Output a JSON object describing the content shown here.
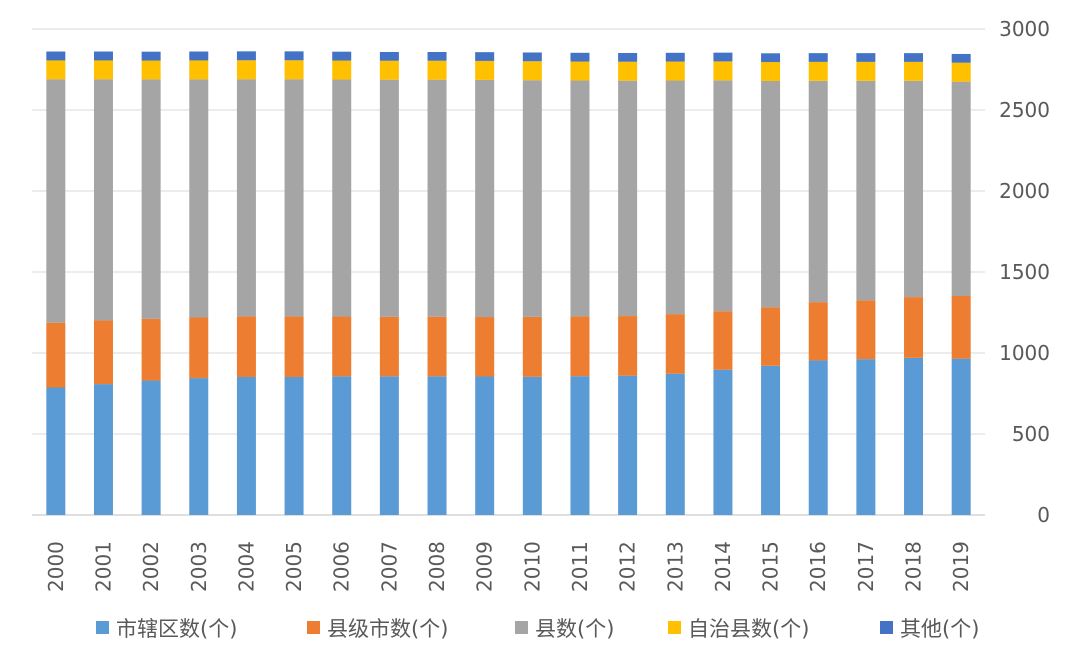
{
  "chart_data": {
    "type": "bar",
    "stacked": true,
    "title": "",
    "xlabel": "",
    "ylabel": "",
    "ylim": [
      0,
      3000
    ],
    "yticks": [
      0,
      500,
      1000,
      1500,
      2000,
      2500,
      3000
    ],
    "y_axis_side": "right",
    "grid": true,
    "legend_position": "bottom",
    "categories": [
      "2000",
      "2001",
      "2002",
      "2003",
      "2004",
      "2005",
      "2006",
      "2007",
      "2008",
      "2009",
      "2010",
      "2011",
      "2012",
      "2013",
      "2014",
      "2015",
      "2016",
      "2017",
      "2018",
      "2019"
    ],
    "series": [
      {
        "name": "市辖区数(个)",
        "color": "#5B9BD5",
        "values": [
          787,
          808,
          830,
          845,
          852,
          852,
          856,
          856,
          856,
          855,
          853,
          857,
          860,
          872,
          897,
          921,
          954,
          962,
          970,
          965
        ]
      },
      {
        "name": "县级市数(个)",
        "color": "#ED7D31",
        "values": [
          400,
          393,
          381,
          374,
          374,
          374,
          369,
          368,
          368,
          367,
          370,
          369,
          368,
          368,
          361,
          361,
          360,
          363,
          375,
          387
        ]
      },
      {
        "name": "县数(个)",
        "color": "#A5A5A5",
        "values": [
          1503,
          1489,
          1478,
          1470,
          1464,
          1464,
          1463,
          1463,
          1463,
          1464,
          1461,
          1456,
          1453,
          1442,
          1425,
          1397,
          1366,
          1355,
          1335,
          1323
        ]
      },
      {
        "name": "自治县数(个)",
        "color": "#FFC000",
        "values": [
          116,
          116,
          116,
          117,
          117,
          117,
          117,
          117,
          117,
          117,
          117,
          117,
          117,
          117,
          117,
          117,
          117,
          117,
          117,
          117
        ]
      },
      {
        "name": "其他(个)",
        "color": "#4472C4",
        "values": [
          55,
          55,
          55,
          55,
          55,
          55,
          55,
          54,
          54,
          54,
          54,
          54,
          54,
          54,
          54,
          54,
          54,
          54,
          54,
          54
        ]
      }
    ]
  }
}
